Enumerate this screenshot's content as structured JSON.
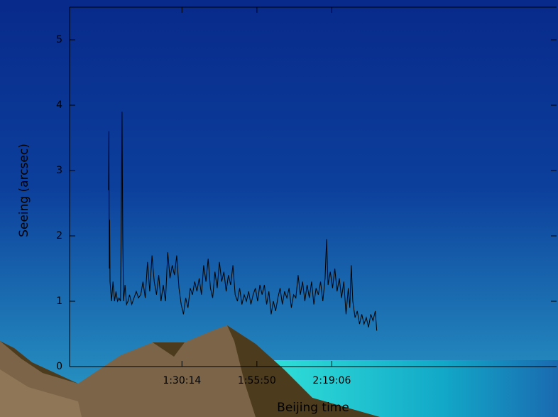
{
  "chart_data": {
    "type": "line",
    "ylabel": "Seeing (arcsec)",
    "xlabel": "Beijing time",
    "xlim": [
      -50,
      600
    ],
    "ylim": [
      0,
      5.5
    ],
    "yticks": [
      0,
      1,
      2,
      3,
      4,
      5
    ],
    "xticks": [
      {
        "value": 100,
        "label": "1:30:14"
      },
      {
        "value": 200,
        "label": "1:55:50"
      },
      {
        "value": 300,
        "label": "2:19:06"
      }
    ],
    "series": [
      {
        "color": "#000000",
        "x": [
          2,
          2.5,
          3,
          3.5,
          4,
          6,
          8,
          10,
          12,
          14,
          16,
          18,
          19,
          20,
          21,
          22,
          24,
          26,
          28,
          30,
          33,
          36,
          39,
          42,
          45,
          48,
          51,
          54,
          57,
          60,
          63,
          66,
          69,
          72,
          75,
          78,
          81,
          84,
          87,
          90,
          93,
          96,
          99,
          102,
          105,
          108,
          111,
          114,
          117,
          120,
          123,
          126,
          129,
          132,
          135,
          138,
          141,
          144,
          147,
          150,
          153,
          156,
          159,
          162,
          165,
          168,
          171,
          174,
          177,
          180,
          183,
          186,
          189,
          192,
          195,
          198,
          201,
          204,
          207,
          210,
          213,
          216,
          219,
          222,
          225,
          228,
          231,
          234,
          237,
          240,
          243,
          246,
          249,
          252,
          255,
          258,
          261,
          264,
          267,
          270,
          273,
          276,
          279,
          282,
          285,
          288,
          291,
          293,
          295,
          298,
          301,
          304,
          307,
          310,
          313,
          316,
          319,
          322,
          324,
          326,
          328,
          331,
          334,
          337,
          340,
          343,
          346,
          349,
          352,
          355,
          358,
          360
        ],
        "values": [
          2.7,
          3.6,
          1.5,
          2.25,
          1.3,
          1.0,
          1.3,
          1.0,
          1.15,
          1.0,
          1.05,
          1.0,
          2.3,
          3.9,
          2.0,
          1.0,
          1.25,
          0.95,
          1.0,
          1.1,
          0.95,
          1.05,
          1.15,
          1.05,
          1.1,
          1.3,
          1.05,
          1.6,
          1.15,
          1.7,
          1.3,
          1.1,
          1.4,
          1.0,
          1.25,
          1.0,
          1.75,
          1.35,
          1.55,
          1.4,
          1.7,
          1.2,
          0.95,
          0.8,
          1.05,
          0.9,
          1.2,
          1.1,
          1.3,
          1.15,
          1.35,
          1.1,
          1.55,
          1.3,
          1.65,
          1.2,
          1.05,
          1.45,
          1.2,
          1.6,
          1.3,
          1.45,
          1.15,
          1.4,
          1.25,
          1.55,
          1.1,
          1.0,
          1.2,
          0.95,
          1.1,
          1.0,
          1.15,
          0.95,
          1.1,
          1.2,
          1.0,
          1.25,
          1.1,
          1.25,
          0.95,
          1.15,
          0.8,
          1.0,
          0.85,
          1.05,
          1.2,
          0.95,
          1.15,
          1.05,
          1.2,
          0.9,
          1.1,
          1.05,
          1.4,
          1.1,
          1.3,
          1.0,
          1.25,
          1.05,
          1.3,
          0.95,
          1.2,
          1.1,
          1.3,
          1.0,
          1.35,
          1.95,
          1.25,
          1.45,
          1.2,
          1.5,
          1.15,
          1.35,
          1.05,
          1.3,
          0.8,
          1.2,
          0.9,
          1.55,
          1.0,
          0.75,
          0.85,
          0.65,
          0.8,
          0.65,
          0.75,
          0.6,
          0.8,
          0.7,
          0.85,
          0.55
        ]
      }
    ]
  }
}
